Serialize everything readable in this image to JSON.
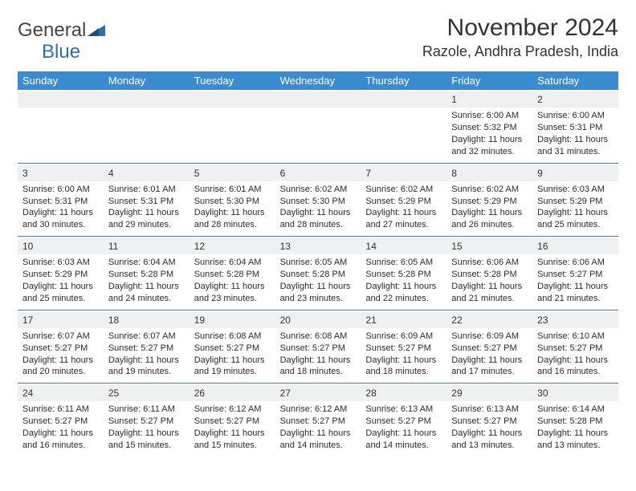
{
  "brand": {
    "part1": "General",
    "part2": "Blue"
  },
  "title": "November 2024",
  "location": "Razole, Andhra Pradesh, India",
  "colors": {
    "header_bar": "#3b8bd0",
    "band": "#eef0f2",
    "week_divider": "#4a7aa8",
    "text": "#2b2b2b",
    "logo_accent": "#2f6fab"
  },
  "day_names": [
    "Sunday",
    "Monday",
    "Tuesday",
    "Wednesday",
    "Thursday",
    "Friday",
    "Saturday"
  ],
  "weeks": [
    [
      null,
      null,
      null,
      null,
      null,
      {
        "n": "1",
        "sr": "Sunrise: 6:00 AM",
        "ss": "Sunset: 5:32 PM",
        "dl": "Daylight: 11 hours and 32 minutes."
      },
      {
        "n": "2",
        "sr": "Sunrise: 6:00 AM",
        "ss": "Sunset: 5:31 PM",
        "dl": "Daylight: 11 hours and 31 minutes."
      }
    ],
    [
      {
        "n": "3",
        "sr": "Sunrise: 6:00 AM",
        "ss": "Sunset: 5:31 PM",
        "dl": "Daylight: 11 hours and 30 minutes."
      },
      {
        "n": "4",
        "sr": "Sunrise: 6:01 AM",
        "ss": "Sunset: 5:31 PM",
        "dl": "Daylight: 11 hours and 29 minutes."
      },
      {
        "n": "5",
        "sr": "Sunrise: 6:01 AM",
        "ss": "Sunset: 5:30 PM",
        "dl": "Daylight: 11 hours and 28 minutes."
      },
      {
        "n": "6",
        "sr": "Sunrise: 6:02 AM",
        "ss": "Sunset: 5:30 PM",
        "dl": "Daylight: 11 hours and 28 minutes."
      },
      {
        "n": "7",
        "sr": "Sunrise: 6:02 AM",
        "ss": "Sunset: 5:29 PM",
        "dl": "Daylight: 11 hours and 27 minutes."
      },
      {
        "n": "8",
        "sr": "Sunrise: 6:02 AM",
        "ss": "Sunset: 5:29 PM",
        "dl": "Daylight: 11 hours and 26 minutes."
      },
      {
        "n": "9",
        "sr": "Sunrise: 6:03 AM",
        "ss": "Sunset: 5:29 PM",
        "dl": "Daylight: 11 hours and 25 minutes."
      }
    ],
    [
      {
        "n": "10",
        "sr": "Sunrise: 6:03 AM",
        "ss": "Sunset: 5:29 PM",
        "dl": "Daylight: 11 hours and 25 minutes."
      },
      {
        "n": "11",
        "sr": "Sunrise: 6:04 AM",
        "ss": "Sunset: 5:28 PM",
        "dl": "Daylight: 11 hours and 24 minutes."
      },
      {
        "n": "12",
        "sr": "Sunrise: 6:04 AM",
        "ss": "Sunset: 5:28 PM",
        "dl": "Daylight: 11 hours and 23 minutes."
      },
      {
        "n": "13",
        "sr": "Sunrise: 6:05 AM",
        "ss": "Sunset: 5:28 PM",
        "dl": "Daylight: 11 hours and 23 minutes."
      },
      {
        "n": "14",
        "sr": "Sunrise: 6:05 AM",
        "ss": "Sunset: 5:28 PM",
        "dl": "Daylight: 11 hours and 22 minutes."
      },
      {
        "n": "15",
        "sr": "Sunrise: 6:06 AM",
        "ss": "Sunset: 5:28 PM",
        "dl": "Daylight: 11 hours and 21 minutes."
      },
      {
        "n": "16",
        "sr": "Sunrise: 6:06 AM",
        "ss": "Sunset: 5:27 PM",
        "dl": "Daylight: 11 hours and 21 minutes."
      }
    ],
    [
      {
        "n": "17",
        "sr": "Sunrise: 6:07 AM",
        "ss": "Sunset: 5:27 PM",
        "dl": "Daylight: 11 hours and 20 minutes."
      },
      {
        "n": "18",
        "sr": "Sunrise: 6:07 AM",
        "ss": "Sunset: 5:27 PM",
        "dl": "Daylight: 11 hours and 19 minutes."
      },
      {
        "n": "19",
        "sr": "Sunrise: 6:08 AM",
        "ss": "Sunset: 5:27 PM",
        "dl": "Daylight: 11 hours and 19 minutes."
      },
      {
        "n": "20",
        "sr": "Sunrise: 6:08 AM",
        "ss": "Sunset: 5:27 PM",
        "dl": "Daylight: 11 hours and 18 minutes."
      },
      {
        "n": "21",
        "sr": "Sunrise: 6:09 AM",
        "ss": "Sunset: 5:27 PM",
        "dl": "Daylight: 11 hours and 18 minutes."
      },
      {
        "n": "22",
        "sr": "Sunrise: 6:09 AM",
        "ss": "Sunset: 5:27 PM",
        "dl": "Daylight: 11 hours and 17 minutes."
      },
      {
        "n": "23",
        "sr": "Sunrise: 6:10 AM",
        "ss": "Sunset: 5:27 PM",
        "dl": "Daylight: 11 hours and 16 minutes."
      }
    ],
    [
      {
        "n": "24",
        "sr": "Sunrise: 6:11 AM",
        "ss": "Sunset: 5:27 PM",
        "dl": "Daylight: 11 hours and 16 minutes."
      },
      {
        "n": "25",
        "sr": "Sunrise: 6:11 AM",
        "ss": "Sunset: 5:27 PM",
        "dl": "Daylight: 11 hours and 15 minutes."
      },
      {
        "n": "26",
        "sr": "Sunrise: 6:12 AM",
        "ss": "Sunset: 5:27 PM",
        "dl": "Daylight: 11 hours and 15 minutes."
      },
      {
        "n": "27",
        "sr": "Sunrise: 6:12 AM",
        "ss": "Sunset: 5:27 PM",
        "dl": "Daylight: 11 hours and 14 minutes."
      },
      {
        "n": "28",
        "sr": "Sunrise: 6:13 AM",
        "ss": "Sunset: 5:27 PM",
        "dl": "Daylight: 11 hours and 14 minutes."
      },
      {
        "n": "29",
        "sr": "Sunrise: 6:13 AM",
        "ss": "Sunset: 5:27 PM",
        "dl": "Daylight: 11 hours and 13 minutes."
      },
      {
        "n": "30",
        "sr": "Sunrise: 6:14 AM",
        "ss": "Sunset: 5:28 PM",
        "dl": "Daylight: 11 hours and 13 minutes."
      }
    ]
  ]
}
